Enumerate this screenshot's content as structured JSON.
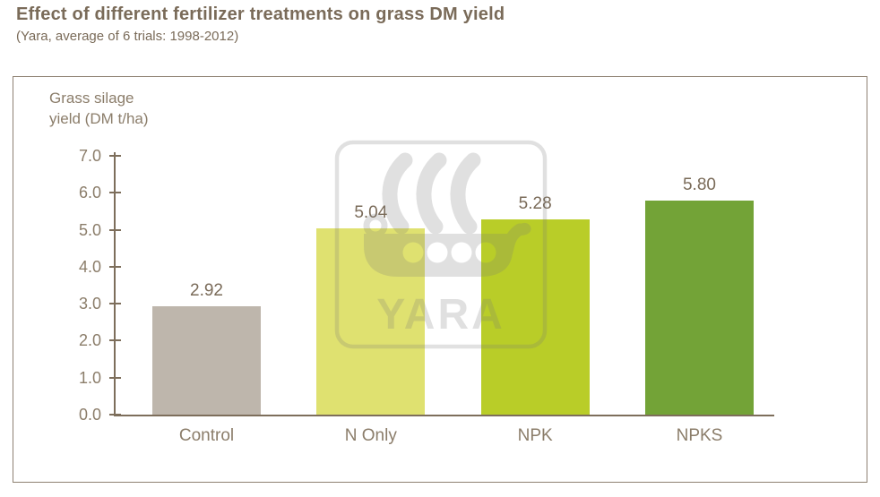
{
  "chart_data": {
    "type": "bar",
    "title": "Effect of different fertilizer treatments on grass DM yield",
    "subtitle": "(Yara, average of 6 trials: 1998-2012)",
    "ylabel": "Grass silage\nyield (DM t/ha)",
    "xlabel": "",
    "categories": [
      "Control",
      "N Only",
      "NPK",
      "NPKS"
    ],
    "values": [
      2.92,
      5.04,
      5.28,
      5.8
    ],
    "value_labels": [
      "2.92",
      "5.04",
      "5.28",
      "5.80"
    ],
    "bar_colors": [
      "#beb6ac",
      "#dfe170",
      "#b9cd28",
      "#73a337"
    ],
    "ylim": [
      0,
      7
    ],
    "ytick_step": 1,
    "ytick_format_decimals": 1,
    "grid": false,
    "legend": "none"
  },
  "watermark": {
    "label": "YARA"
  },
  "colors": {
    "heading": "#7a6b59",
    "text": "#8b7d6a",
    "axis": "#7d6e5b",
    "panel_border": "#8e8172",
    "background": "#ffffff",
    "watermark_gray": "#787878",
    "watermark_opacity": "0.22"
  }
}
